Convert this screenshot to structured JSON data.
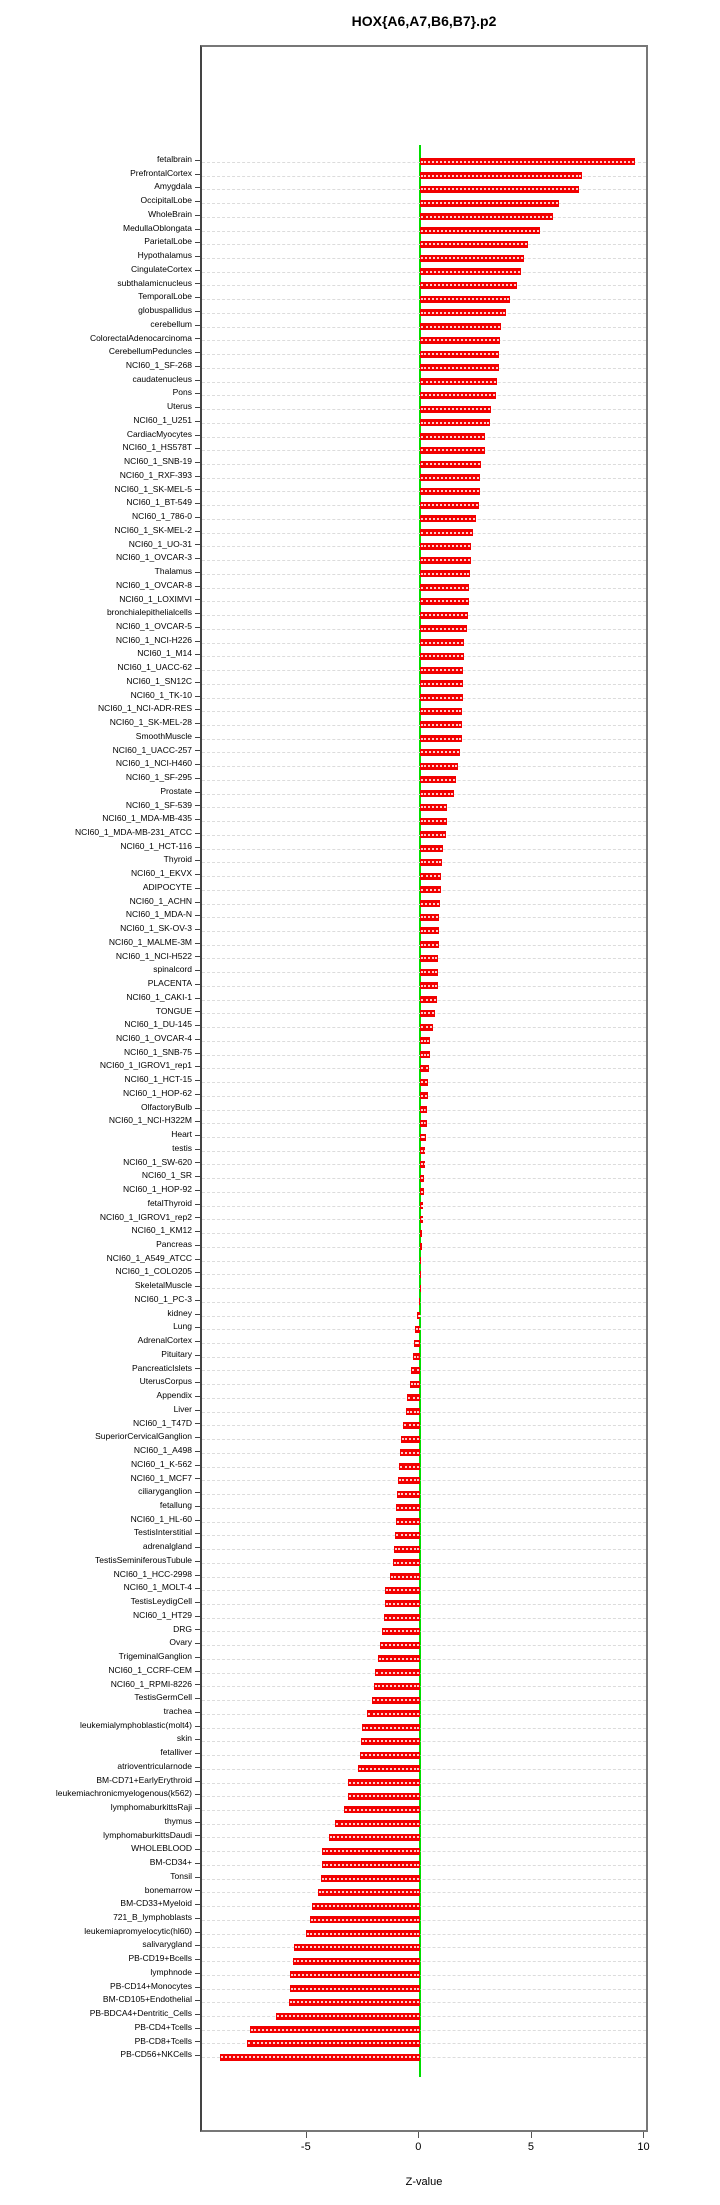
{
  "title": "HOX{A6,A7,B6,B7}.p2",
  "chart_data": {
    "type": "bar",
    "orientation": "horizontal",
    "title": "HOX{A6,A7,B6,B7}.p2",
    "xlabel": "Z-value",
    "x_ticks": [
      -5,
      0,
      5,
      10
    ],
    "xlim": [
      -9.7,
      10.2
    ],
    "grid": true,
    "zero_line": 0,
    "bar_color": "#f20000",
    "zero_line_color": "#00dd00",
    "categories": [
      "fetalbrain",
      "PrefrontalCortex",
      "Amygdala",
      "OccipitalLobe",
      "WholeBrain",
      "MedullaOblongata",
      "ParietalLobe",
      "Hypothalamus",
      "CingulateCortex",
      "subthalamicnucleus",
      "TemporalLobe",
      "globuspallidus",
      "cerebellum",
      "ColorectalAdenocarcinoma",
      "CerebellumPeduncles",
      "NCI60_1_SF-268",
      "caudatenucleus",
      "Pons",
      "Uterus",
      "NCI60_1_U251",
      "CardiacMyocytes",
      "NCI60_1_HS578T",
      "NCI60_1_SNB-19",
      "NCI60_1_RXF-393",
      "NCI60_1_SK-MEL-5",
      "NCI60_1_BT-549",
      "NCI60_1_786-0",
      "NCI60_1_SK-MEL-2",
      "NCI60_1_UO-31",
      "NCI60_1_OVCAR-3",
      "Thalamus",
      "NCI60_1_OVCAR-8",
      "NCI60_1_LOXIMVI",
      "bronchialepithelialcells",
      "NCI60_1_OVCAR-5",
      "NCI60_1_NCI-H226",
      "NCI60_1_M14",
      "NCI60_1_UACC-62",
      "NCI60_1_SN12C",
      "NCI60_1_TK-10",
      "NCI60_1_NCI-ADR-RES",
      "NCI60_1_SK-MEL-28",
      "SmoothMuscle",
      "NCI60_1_UACC-257",
      "NCI60_1_NCI-H460",
      "NCI60_1_SF-295",
      "Prostate",
      "NCI60_1_SF-539",
      "NCI60_1_MDA-MB-435",
      "NCI60_1_MDA-MB-231_ATCC",
      "NCI60_1_HCT-116",
      "Thyroid",
      "NCI60_1_EKVX",
      "ADIPOCYTE",
      "NCI60_1_ACHN",
      "NCI60_1_MDA-N",
      "NCI60_1_SK-OV-3",
      "NCI60_1_MALME-3M",
      "NCI60_1_NCI-H522",
      "spinalcord",
      "PLACENTA",
      "NCI60_1_CAKI-1",
      "TONGUE",
      "NCI60_1_DU-145",
      "NCI60_1_OVCAR-4",
      "NCI60_1_SNB-75",
      "NCI60_1_IGROV1_rep1",
      "NCI60_1_HCT-15",
      "NCI60_1_HOP-62",
      "OlfactoryBulb",
      "NCI60_1_NCI-H322M",
      "Heart",
      "testis",
      "NCI60_1_SW-620",
      "NCI60_1_SR",
      "NCI60_1_HOP-92",
      "fetalThyroid",
      "NCI60_1_IGROV1_rep2",
      "NCI60_1_KM12",
      "Pancreas",
      "NCI60_1_A549_ATCC",
      "NCI60_1_COLO205",
      "SkeletalMuscle",
      "NCI60_1_PC-3",
      "kidney",
      "Lung",
      "AdrenalCortex",
      "Pituitary",
      "PancreaticIslets",
      "UterusCorpus",
      "Appendix",
      "Liver",
      "NCI60_1_T47D",
      "SuperiorCervicalGanglion",
      "NCI60_1_A498",
      "NCI60_1_K-562",
      "NCI60_1_MCF7",
      "ciliaryganglion",
      "fetallung",
      "NCI60_1_HL-60",
      "TestisInterstitial",
      "adrenalgland",
      "TestisSeminiferousTubule",
      "NCI60_1_HCC-2998",
      "NCI60_1_MOLT-4",
      "TestisLeydigCell",
      "NCI60_1_HT29",
      "DRG",
      "Ovary",
      "TrigeminalGanglion",
      "NCI60_1_CCRF-CEM",
      "NCI60_1_RPMI-8226",
      "TestisGermCell",
      "trachea",
      "leukemialymphoblastic(molt4)",
      "skin",
      "fetalliver",
      "atrioventricularnode",
      "BM-CD71+EarlyErythroid",
      "leukemiachronicmyelogenous(k562)",
      "lymphomaburkittsRaji",
      "thymus",
      "lymphomaburkittsDaudi",
      "WHOLEBLOOD",
      "BM-CD34+",
      "Tonsil",
      "bonemarrow",
      "BM-CD33+Myeloid",
      "721_B_lymphoblasts",
      "leukemiapromyelocytic(hl60)",
      "salivarygland",
      "PB-CD19+Bcells",
      "lymphnode",
      "PB-CD14+Monocytes",
      "BM-CD105+Endothelial",
      "PB-BDCA4+Dentritic_Cells",
      "PB-CD4+Tcells",
      "PB-CD8+Tcells",
      "PB-CD56+NKCells"
    ],
    "values": [
      9.53,
      7.2,
      7.05,
      6.15,
      5.9,
      5.3,
      4.8,
      4.6,
      4.45,
      4.3,
      4.0,
      3.8,
      3.6,
      3.55,
      3.5,
      3.5,
      3.4,
      3.35,
      3.15,
      3.1,
      2.85,
      2.85,
      2.7,
      2.65,
      2.65,
      2.6,
      2.45,
      2.35,
      2.25,
      2.25,
      2.2,
      2.18,
      2.15,
      2.1,
      2.05,
      1.95,
      1.95,
      1.9,
      1.9,
      1.88,
      1.85,
      1.85,
      1.83,
      1.75,
      1.68,
      1.6,
      1.48,
      1.2,
      1.2,
      1.15,
      1.0,
      0.95,
      0.9,
      0.9,
      0.88,
      0.85,
      0.83,
      0.82,
      0.8,
      0.8,
      0.77,
      0.75,
      0.65,
      0.55,
      0.45,
      0.42,
      0.4,
      0.33,
      0.32,
      0.3,
      0.28,
      0.25,
      0.22,
      0.2,
      0.17,
      0.15,
      0.12,
      0.1,
      0.08,
      0.06,
      0.03,
      0.01,
      -0.03,
      -0.06,
      -0.13,
      -0.22,
      -0.28,
      -0.33,
      -0.4,
      -0.45,
      -0.6,
      -0.65,
      -0.75,
      -0.88,
      -0.9,
      -0.95,
      -1.0,
      -1.05,
      -1.08,
      -1.1,
      -1.12,
      -1.15,
      -1.22,
      -1.35,
      -1.55,
      -1.58,
      -1.6,
      -1.7,
      -1.8,
      -1.9,
      -2.0,
      -2.05,
      -2.15,
      -2.35,
      -2.6,
      -2.65,
      -2.7,
      -2.78,
      -3.2,
      -3.22,
      -3.4,
      -3.8,
      -4.05,
      -4.35,
      -4.35,
      -4.4,
      -4.55,
      -4.8,
      -4.9,
      -5.1,
      -5.6,
      -5.65,
      -5.8,
      -5.8,
      -5.85,
      -6.4,
      -7.55,
      -7.7,
      -8.9
    ]
  }
}
